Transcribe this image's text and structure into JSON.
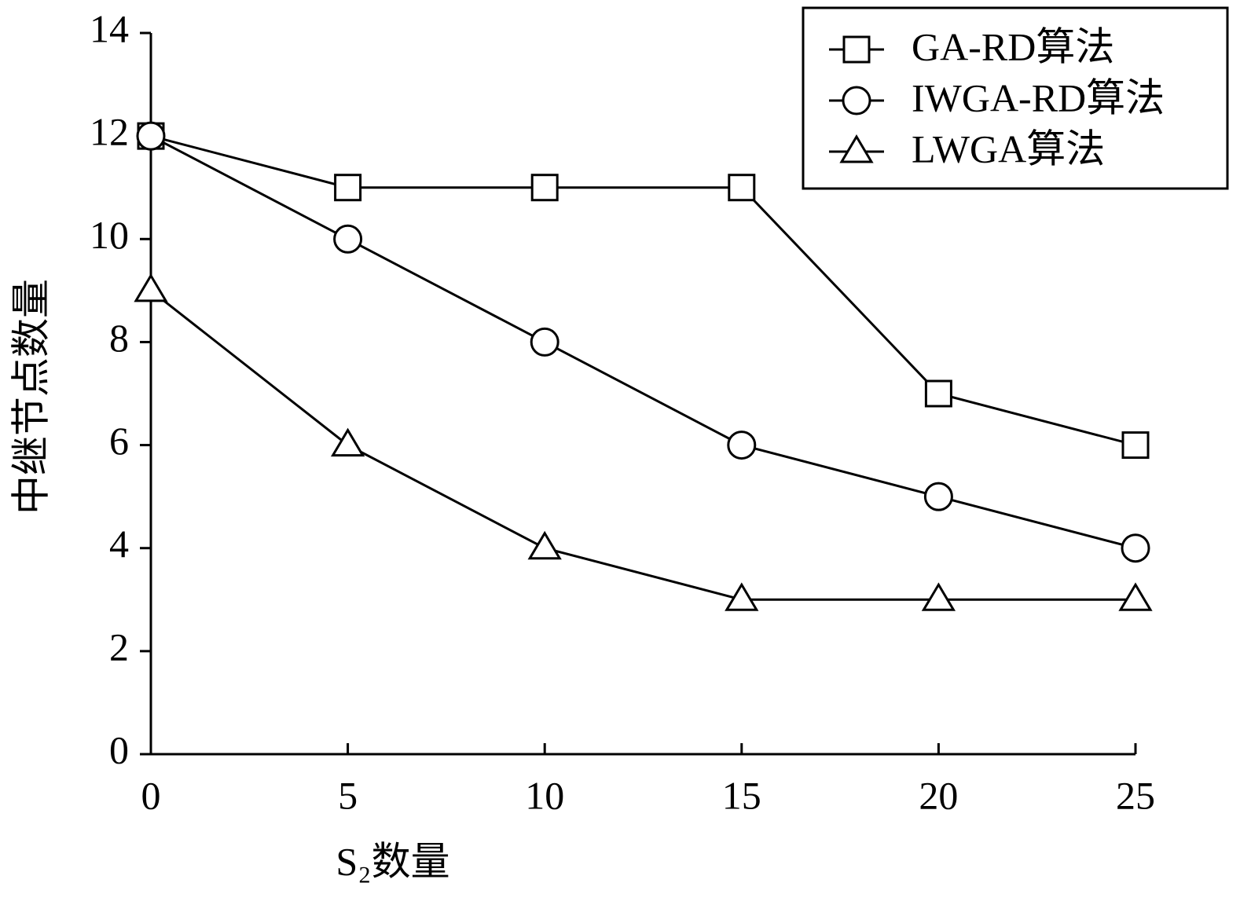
{
  "chart_data": {
    "type": "line",
    "xlabel": "S₂数量",
    "ylabel": "中继节点数量",
    "x": [
      0,
      5,
      10,
      15,
      20,
      25
    ],
    "series": [
      {
        "name": "GA-RD算法",
        "color": "#000000",
        "marker": "square",
        "values": [
          12,
          11,
          11,
          11,
          7,
          6
        ]
      },
      {
        "name": "IWGA-RD算法",
        "color": "#000000",
        "marker": "circle",
        "values": [
          12,
          10,
          8,
          6,
          5,
          4
        ]
      },
      {
        "name": "LWGA算法",
        "color": "#000000",
        "marker": "triangle",
        "values": [
          9,
          6,
          4,
          3,
          3,
          3
        ]
      }
    ],
    "xlim": [
      0,
      25
    ],
    "xticks": [
      0,
      5,
      10,
      15,
      20,
      25
    ],
    "ylim": [
      0,
      14
    ],
    "yticks": [
      0,
      2,
      4,
      6,
      8,
      10,
      12,
      14
    ],
    "legend": "upper right",
    "grid": false
  }
}
